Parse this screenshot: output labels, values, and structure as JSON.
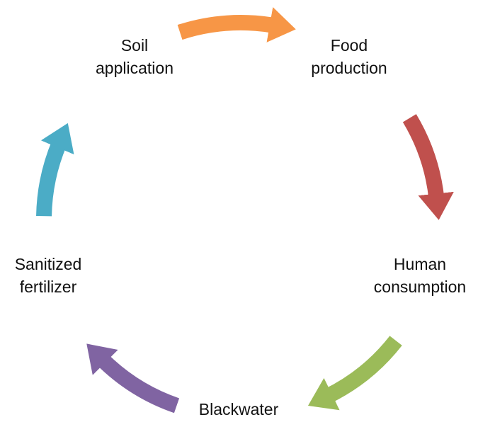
{
  "nodes": [
    {
      "lines": [
        "Soil",
        "application"
      ]
    },
    {
      "lines": [
        "Food",
        "production"
      ]
    },
    {
      "lines": [
        "Human",
        "consumption"
      ]
    },
    {
      "lines": [
        "Blackwater"
      ]
    },
    {
      "lines": [
        "Sanitized",
        "fertilizer"
      ]
    }
  ]
}
